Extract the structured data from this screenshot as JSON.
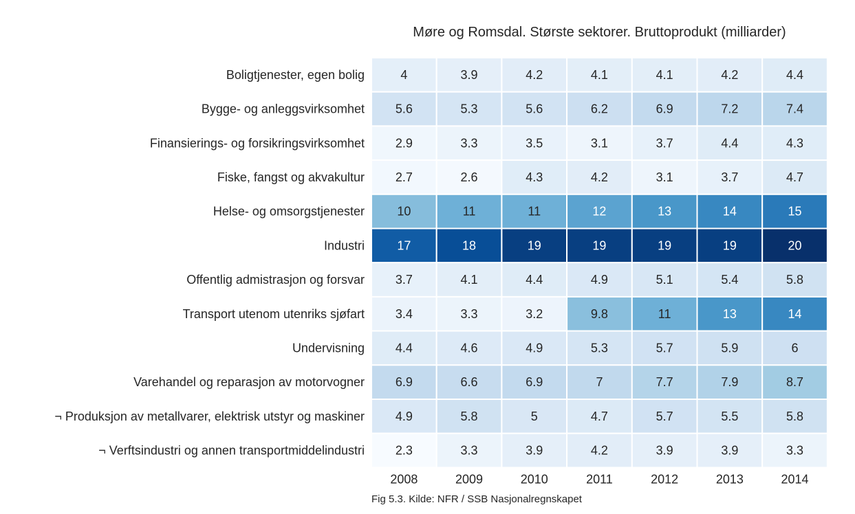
{
  "chart_data": {
    "type": "heatmap",
    "title": "Møre og Romsdal. Største sektorer. Bruttoprodukt (milliarder)",
    "x": [
      "2008",
      "2009",
      "2010",
      "2011",
      "2012",
      "2013",
      "2014"
    ],
    "y": [
      "Boligtjenester, egen bolig",
      "Bygge- og anleggsvirksomhet",
      "Finansierings- og forsikringsvirksomhet",
      "Fiske, fangst og akvakultur",
      "Helse- og omsorgstjenester",
      "Industri",
      "Offentlig admistrasjon og forsvar",
      "Transport utenom utenriks sjøfart",
      "Undervisning",
      "Varehandel og reparasjon av motorvogner",
      "¬ Produksjon av metallvarer, elektrisk utstyr og maskiner",
      "¬ Verftsindustri og annen transportmiddelindustri"
    ],
    "values": [
      [
        4,
        3.9,
        4.2,
        4.1,
        4.1,
        4.2,
        4.4
      ],
      [
        5.6,
        5.3,
        5.6,
        6.2,
        6.9,
        7.2,
        7.4
      ],
      [
        2.9,
        3.3,
        3.5,
        3.1,
        3.7,
        4.4,
        4.3
      ],
      [
        2.7,
        2.6,
        4.3,
        4.2,
        3.1,
        3.7,
        4.7
      ],
      [
        10,
        11,
        11,
        12,
        13,
        14,
        15
      ],
      [
        17,
        18,
        19,
        19,
        19,
        19,
        20
      ],
      [
        3.7,
        4.1,
        4.4,
        4.9,
        5.1,
        5.4,
        5.8
      ],
      [
        3.4,
        3.3,
        3.2,
        9.8,
        11,
        13,
        14
      ],
      [
        4.4,
        4.6,
        4.9,
        5.3,
        5.7,
        5.9,
        6
      ],
      [
        6.9,
        6.6,
        6.9,
        7,
        7.7,
        7.9,
        8.7
      ],
      [
        4.9,
        5.8,
        5,
        4.7,
        5.7,
        5.5,
        5.8
      ],
      [
        2.3,
        3.3,
        3.9,
        4.2,
        3.9,
        3.9,
        3.3
      ]
    ],
    "colormap": "Blues",
    "grid_line_color": "#ffffff",
    "caption": "Fig 5.3. Kilde: NFR / SSB Nasjonalregnskapet"
  }
}
